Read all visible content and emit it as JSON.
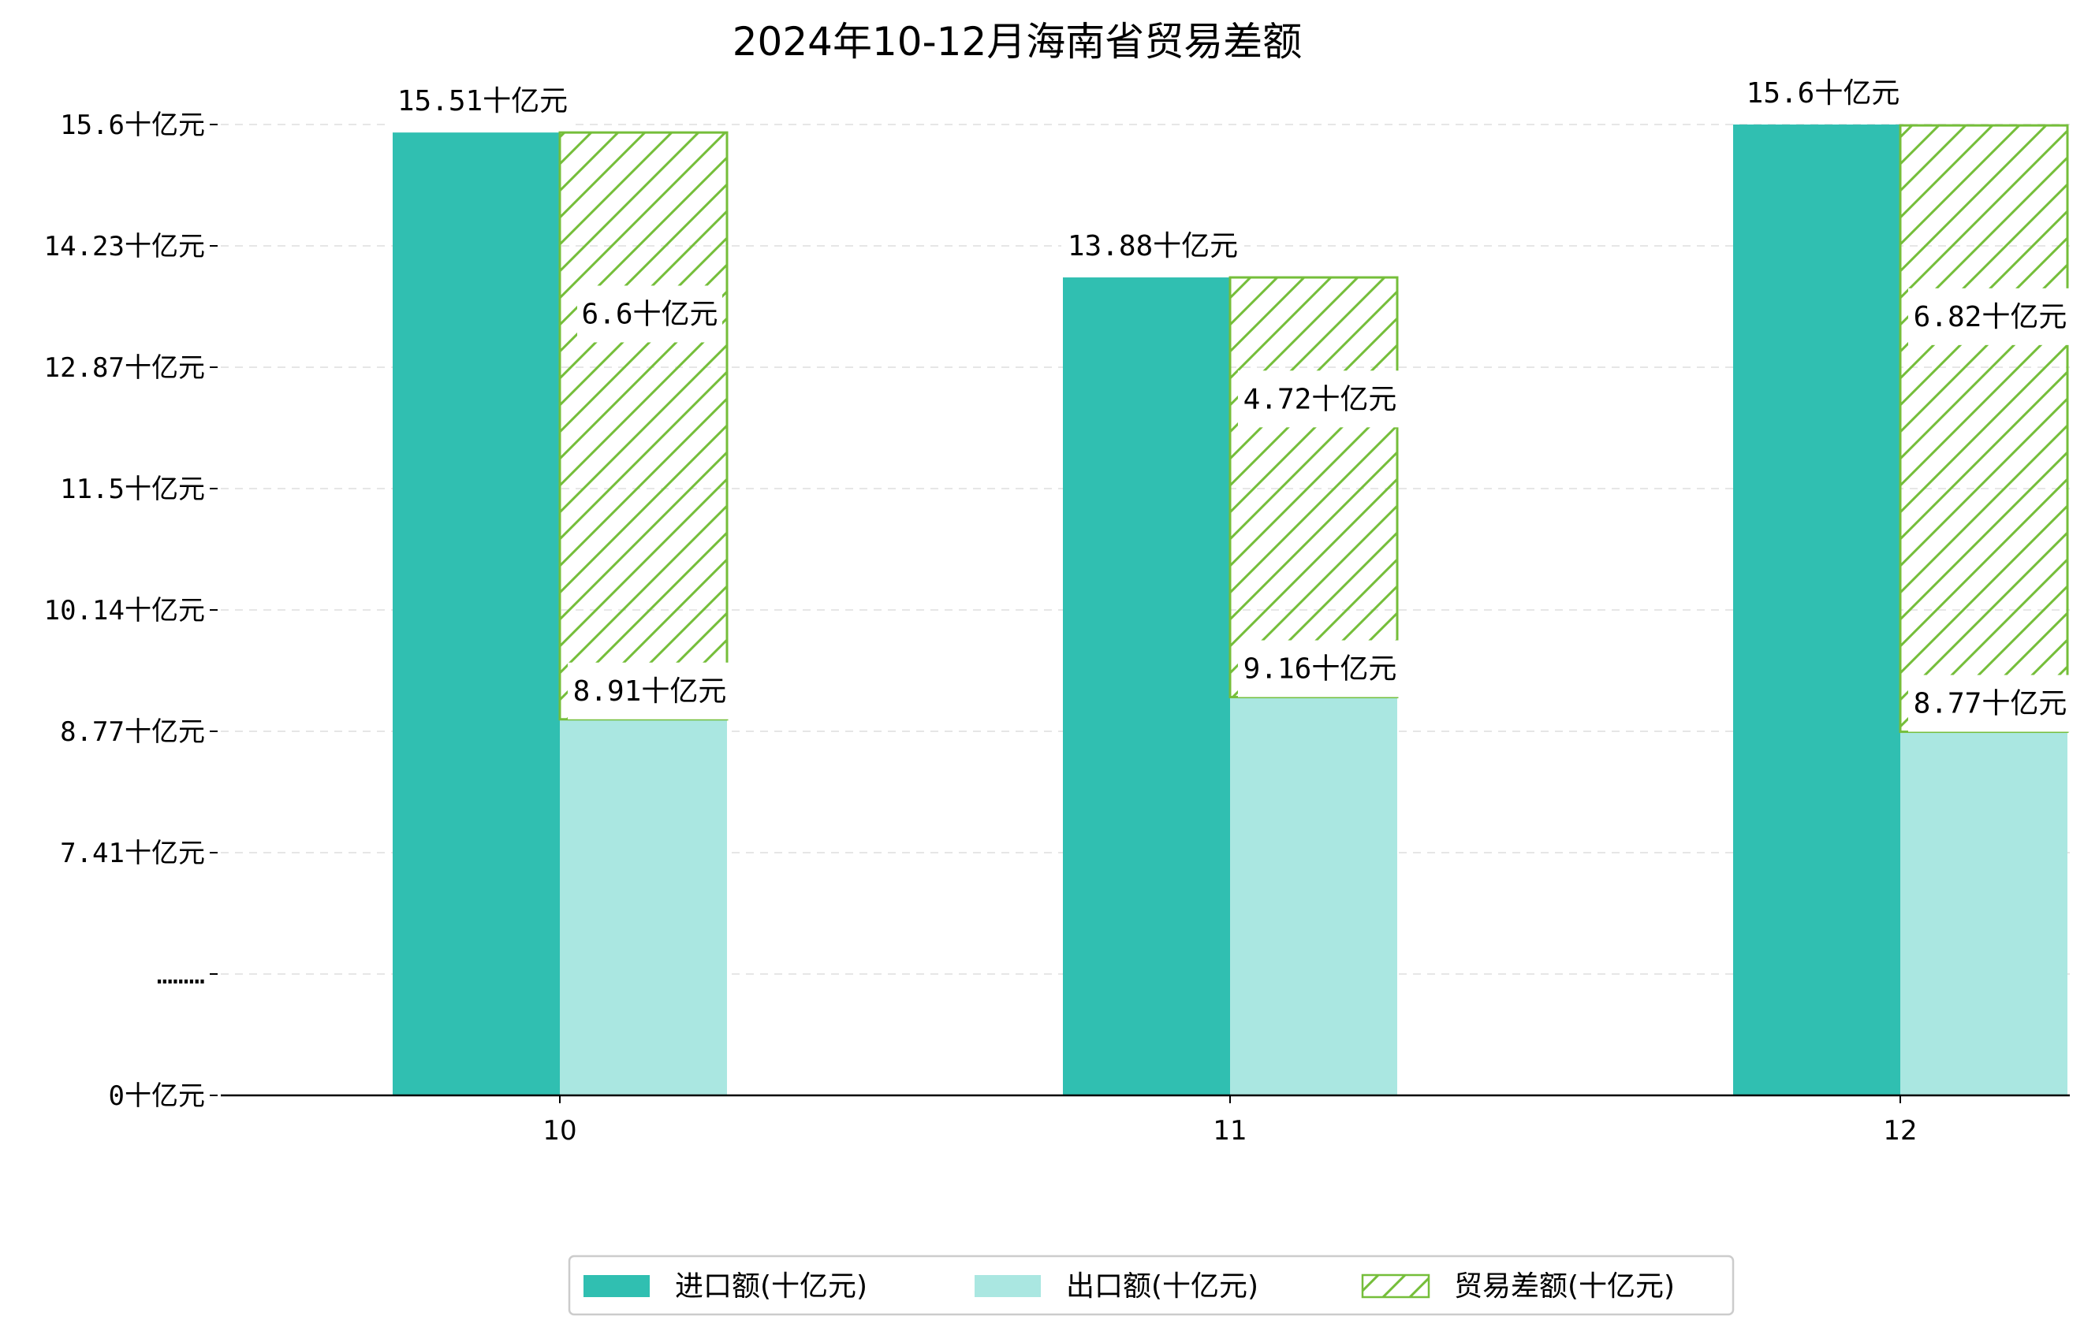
{
  "colors": {
    "import": "#30BFB1",
    "export": "#AAE7E1",
    "balance_edge": "#75BE3A",
    "grid": "#E6E6E6",
    "axis": "#000000"
  },
  "chart_data": {
    "type": "bar",
    "title": "2024年10-12月海南省贸易差额",
    "categories": [
      "10",
      "11",
      "12"
    ],
    "series": [
      {
        "name": "进口额(十亿元)",
        "values": [
          15.51,
          13.88,
          15.6
        ],
        "labels": [
          "15.51十亿元",
          "13.88十亿元",
          "15.6十亿元"
        ]
      },
      {
        "name": "出口额(十亿元)",
        "values": [
          8.91,
          9.16,
          8.77
        ],
        "labels": [
          "8.91十亿元",
          "9.16十亿元",
          "8.77十亿元"
        ]
      },
      {
        "name": "贸易差额(十亿元)",
        "values": [
          6.6,
          4.72,
          6.82
        ],
        "labels": [
          "6.6十亿元",
          "4.72十亿元",
          "6.82十亿元"
        ],
        "stacked_on": "出口额(十亿元)",
        "pattern": "hatch"
      }
    ],
    "y_ticks": [
      "0十亿元",
      "………",
      "7.41十亿元",
      "8.77十亿元",
      "10.14十亿元",
      "11.5十亿元",
      "12.87十亿元",
      "14.23十亿元",
      "15.6十亿元"
    ],
    "y_axis_break": true,
    "grid": "horizontal-dashed",
    "legend_position": "bottom-center"
  }
}
